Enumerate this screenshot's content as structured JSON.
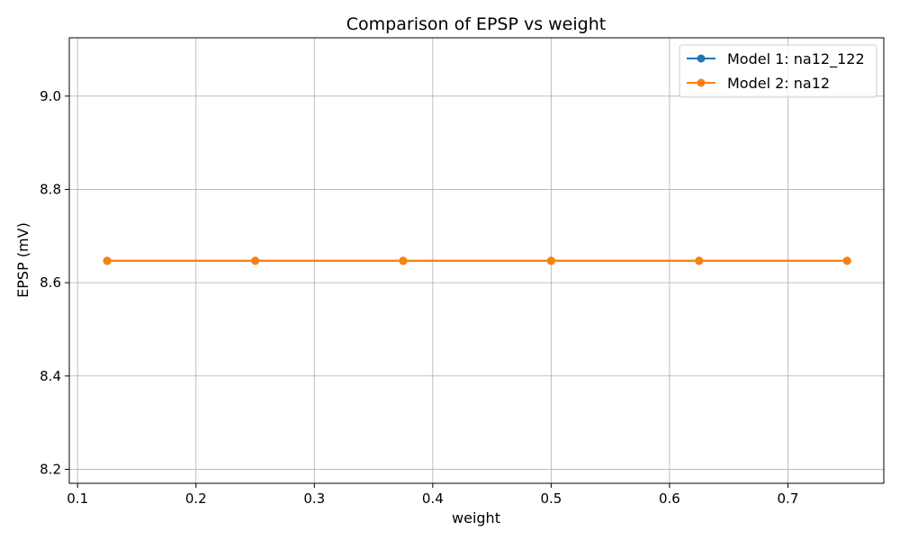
{
  "chart_data": {
    "type": "line",
    "title": "Comparison of EPSP vs weight",
    "xlabel": "weight",
    "ylabel": "EPSP (mV)",
    "xlim": [
      0.093,
      0.781
    ],
    "ylim": [
      8.17,
      9.125
    ],
    "xticks": [
      0.1,
      0.2,
      0.3,
      0.4,
      0.5,
      0.6,
      0.7
    ],
    "xtick_labels": [
      "0.1",
      "0.2",
      "0.3",
      "0.4",
      "0.5",
      "0.6",
      "0.7"
    ],
    "yticks": [
      8.2,
      8.4,
      8.6,
      8.8,
      9.0
    ],
    "ytick_labels": [
      "8.2",
      "8.4",
      "8.6",
      "8.8",
      "9.0"
    ],
    "grid": true,
    "legend_position": "top-right",
    "x": [
      0.125,
      0.25,
      0.375,
      0.5,
      0.625,
      0.75
    ],
    "series": [
      {
        "name": "Model 1: na12_122",
        "color": "#1f77b4",
        "values": [
          8.647,
          8.647,
          8.647,
          8.647,
          8.647,
          8.647
        ]
      },
      {
        "name": "Model 2: na12",
        "color": "#ff7f0e",
        "values": [
          8.647,
          8.647,
          8.647,
          8.647,
          8.647,
          8.647
        ]
      }
    ]
  }
}
